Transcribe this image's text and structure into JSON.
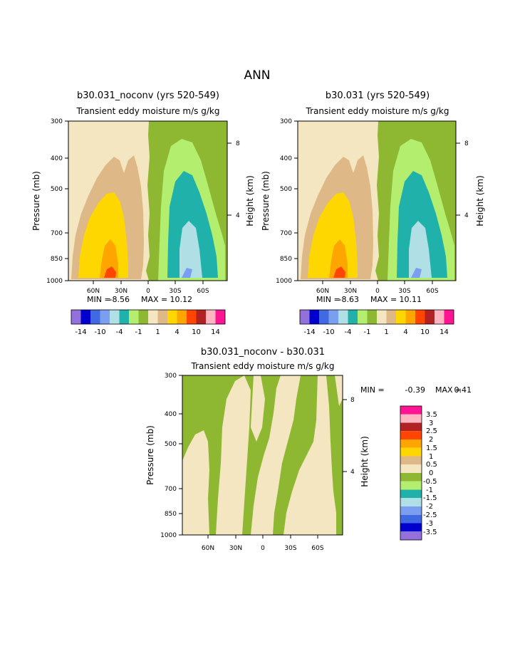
{
  "page_title": "ANN",
  "colors": {
    "cream": "#f5e6c2",
    "tan": "#deb887",
    "yellow": "#ffd700",
    "orange": "#ffa500",
    "redorange": "#ff4500",
    "olive": "#8fb832",
    "lightgreen": "#b4ee6e",
    "teal": "#20b2aa",
    "lightblue": "#b0e0e6",
    "cornflower": "#7b9ff0"
  },
  "chart_data": [
    {
      "type": "contour",
      "title": "b30.031_noconv (yrs 520-549)",
      "subtitle": "Transient eddy moisture m/s g/kg",
      "ylabel": "Pressure (mb)",
      "y2label": "Height (km)",
      "yticks": [
        "300",
        "400",
        "500",
        "700",
        "850",
        "1000"
      ],
      "y2ticks": [
        "8",
        "4"
      ],
      "xticks": [
        "60N",
        "30N",
        "0",
        "30S",
        "60S"
      ],
      "min_label": "MIN =",
      "min_value": "-8.56",
      "max_label": "MAX =",
      "max_value": "10.12",
      "colorbar_labels": [
        "-14",
        "-10",
        "-4",
        "-1",
        "1",
        "4",
        "10",
        "14"
      ]
    },
    {
      "type": "contour",
      "title": "b30.031 (yrs 520-549)",
      "subtitle": "Transient eddy moisture m/s g/kg",
      "ylabel": "Pressure (mb)",
      "y2label": "Height (km)",
      "yticks": [
        "300",
        "400",
        "500",
        "700",
        "850",
        "1000"
      ],
      "y2ticks": [
        "8",
        "4"
      ],
      "xticks": [
        "60N",
        "30N",
        "0",
        "30S",
        "60S"
      ],
      "min_label": "MIN =",
      "min_value": "-8.63",
      "max_label": "MAX =",
      "max_value": "10.11",
      "colorbar_labels": [
        "-14",
        "-10",
        "-4",
        "-1",
        "1",
        "4",
        "10",
        "14"
      ]
    },
    {
      "type": "contour",
      "title": "b30.031_noconv - b30.031",
      "subtitle": "Transient eddy moisture m/s g/kg",
      "ylabel": "Pressure (mb)",
      "y2label": "Height (km)",
      "yticks": [
        "300",
        "400",
        "500",
        "700",
        "850",
        "1000"
      ],
      "y2ticks": [
        "8",
        "4"
      ],
      "xticks": [
        "60N",
        "30N",
        "0",
        "30S",
        "60S"
      ],
      "min_label": "MIN =",
      "min_value": "-0.39",
      "max_label": "MAX =",
      "max_value": "0.41",
      "colorbar_labels": [
        "3.5",
        "3",
        "2.5",
        "2",
        "1.5",
        "1",
        "0.5",
        "0",
        "-0.5",
        "-1",
        "-1.5",
        "-2",
        "-2.5",
        "-3",
        "-3.5"
      ]
    }
  ]
}
